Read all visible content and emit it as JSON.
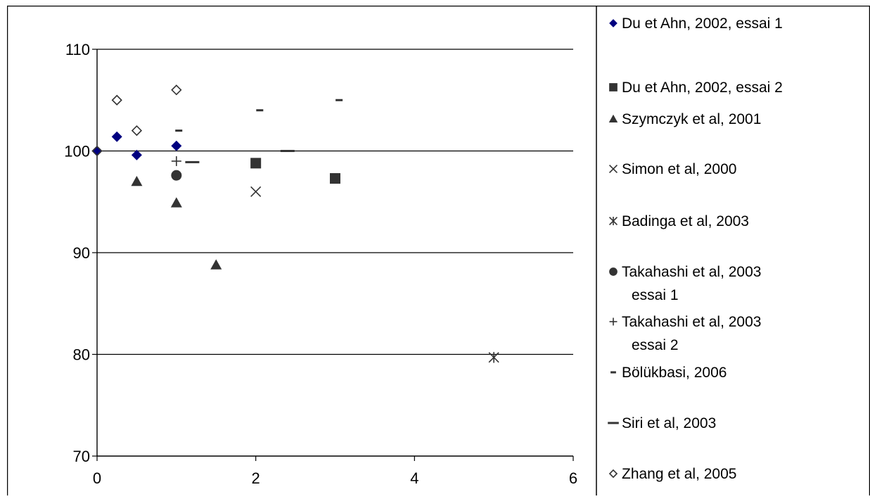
{
  "chart_data": {
    "type": "scatter",
    "title": "",
    "xlabel": "",
    "ylabel": "",
    "xlim": [
      0,
      6
    ],
    "ylim": [
      70,
      110
    ],
    "xticks": [
      "0",
      "2",
      "4",
      "6"
    ],
    "yticks": [
      "70",
      "80",
      "90",
      "100",
      "110"
    ],
    "grid": "horizontal",
    "legend_position": "right",
    "series": [
      {
        "name": "Du et Ahn, 2002, essai 1",
        "marker": "diamond",
        "color": "#000080",
        "points": [
          [
            0,
            100
          ],
          [
            0.25,
            101.4
          ],
          [
            0.5,
            99.6
          ],
          [
            1,
            100.5
          ]
        ]
      },
      {
        "name": "Du et Ahn, 2002, essai 2",
        "marker": "square",
        "color": "#333333",
        "points": [
          [
            2,
            98.8
          ],
          [
            3,
            97.3
          ]
        ]
      },
      {
        "name": "Szymczyk et al, 2001",
        "marker": "triangle",
        "color": "#333333",
        "points": [
          [
            0.5,
            97
          ],
          [
            1,
            94.9
          ],
          [
            1.5,
            88.8
          ]
        ]
      },
      {
        "name": "Simon et al, 2000",
        "marker": "x",
        "color": "#333333",
        "points": [
          [
            2,
            96
          ]
        ]
      },
      {
        "name": "Badinga et al, 2003",
        "marker": "star",
        "color": "#333333",
        "points": [
          [
            5,
            79.7
          ]
        ]
      },
      {
        "name": "Takahashi et al, 2003 essai 1",
        "marker": "circle",
        "color": "#333333",
        "points": [
          [
            1,
            97.6
          ]
        ]
      },
      {
        "name": "Takahashi et al, 2003 essai 2",
        "marker": "plus",
        "color": "#333333",
        "points": [
          [
            1,
            99
          ]
        ]
      },
      {
        "name": "Bölükbasi, 2006",
        "marker": "short-dash",
        "color": "#333333",
        "points": [
          [
            1.03,
            102
          ],
          [
            2.05,
            104
          ],
          [
            3.05,
            105
          ]
        ]
      },
      {
        "name": "Siri et al, 2003",
        "marker": "long-dash",
        "color": "#333333",
        "points": [
          [
            1.2,
            98.9
          ],
          [
            2.4,
            100
          ]
        ]
      },
      {
        "name": "Zhang et al, 2005",
        "marker": "open-diamond",
        "color": "#333333",
        "points": [
          [
            0,
            100
          ],
          [
            0.25,
            105
          ],
          [
            0.5,
            102
          ],
          [
            1,
            106
          ]
        ]
      }
    ]
  }
}
